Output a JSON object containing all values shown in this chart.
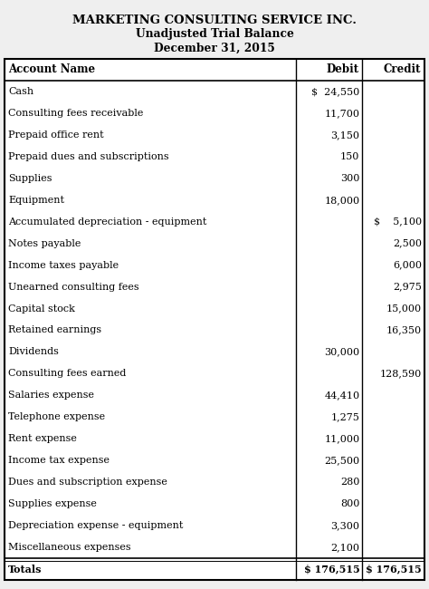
{
  "title1": "MARKETING CONSULTING SERVICE INC.",
  "title2": "Unadjusted Trial Balance",
  "title3": "December 31, 2015",
  "col_headers": [
    "Account Name",
    "Debit",
    "Credit"
  ],
  "rows": [
    {
      "account": "Cash",
      "debit": "$  24,550",
      "credit": ""
    },
    {
      "account": "Consulting fees receivable",
      "debit": "11,700",
      "credit": ""
    },
    {
      "account": "Prepaid office rent",
      "debit": "3,150",
      "credit": ""
    },
    {
      "account": "Prepaid dues and subscriptions",
      "debit": "150",
      "credit": ""
    },
    {
      "account": "Supplies",
      "debit": "300",
      "credit": ""
    },
    {
      "account": "Equipment",
      "debit": "18,000",
      "credit": ""
    },
    {
      "account": "Accumulated depreciation - equipment",
      "debit": "",
      "credit": "$    5,100"
    },
    {
      "account": "Notes payable",
      "debit": "",
      "credit": "2,500"
    },
    {
      "account": "Income taxes payable",
      "debit": "",
      "credit": "6,000"
    },
    {
      "account": "Unearned consulting fees",
      "debit": "",
      "credit": "2,975"
    },
    {
      "account": "Capital stock",
      "debit": "",
      "credit": "15,000"
    },
    {
      "account": "Retained earnings",
      "debit": "",
      "credit": "16,350"
    },
    {
      "account": "Dividends",
      "debit": "30,000",
      "credit": ""
    },
    {
      "account": "Consulting fees earned",
      "debit": "",
      "credit": "128,590"
    },
    {
      "account": "Salaries expense",
      "debit": "44,410",
      "credit": ""
    },
    {
      "account": "Telephone expense",
      "debit": "1,275",
      "credit": ""
    },
    {
      "account": "Rent expense",
      "debit": "11,000",
      "credit": ""
    },
    {
      "account": "Income tax expense",
      "debit": "25,500",
      "credit": ""
    },
    {
      "account": "Dues and subscription expense",
      "debit": "280",
      "credit": ""
    },
    {
      "account": "Supplies expense",
      "debit": "800",
      "credit": ""
    },
    {
      "account": "Depreciation expense - equipment",
      "debit": "3,300",
      "credit": ""
    },
    {
      "account": "Miscellaneous expenses",
      "debit": "2,100",
      "credit": ""
    }
  ],
  "totals": {
    "account": "Totals",
    "debit": "$ 176,515",
    "credit": "$ 176,515"
  },
  "bg_color": "#efefef",
  "font_size": 8.0,
  "header_font_size": 8.5,
  "title_font_size_1": 9.5,
  "title_font_size_23": 8.8,
  "col_split1": 0.695,
  "col_split2": 0.852
}
